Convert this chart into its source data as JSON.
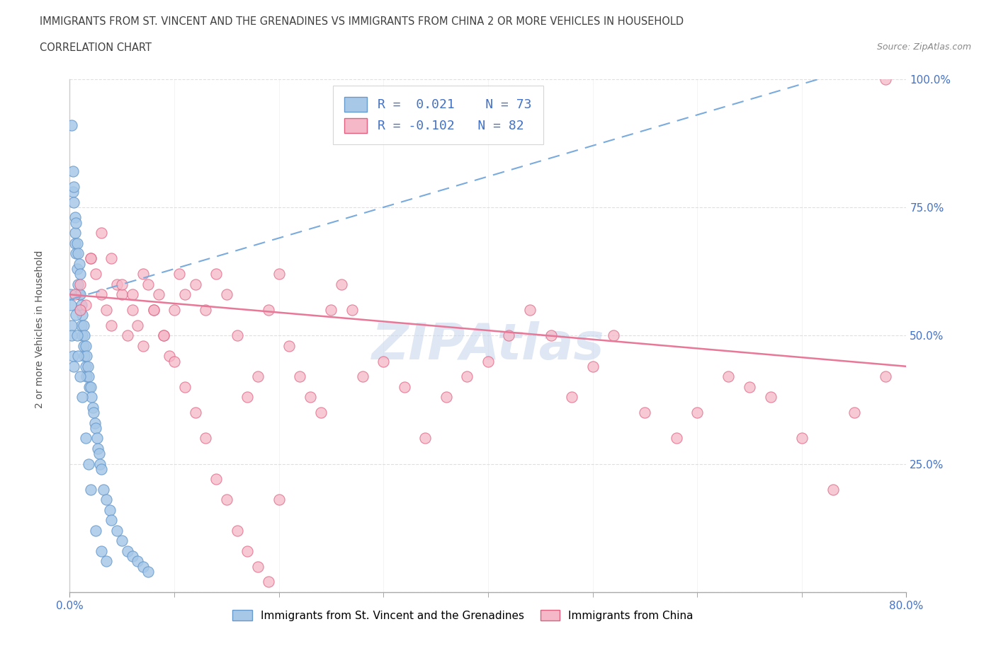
{
  "title": "IMMIGRANTS FROM ST. VINCENT AND THE GRENADINES VS IMMIGRANTS FROM CHINA 2 OR MORE VEHICLES IN HOUSEHOLD",
  "subtitle": "CORRELATION CHART",
  "source": "Source: ZipAtlas.com",
  "ylabel": "2 or more Vehicles in Household",
  "xlim": [
    0.0,
    80.0
  ],
  "ylim": [
    0.0,
    100.0
  ],
  "blue_R": 0.021,
  "blue_N": 73,
  "pink_R": -0.102,
  "pink_N": 82,
  "blue_color": "#a8c8e8",
  "pink_color": "#f5b8c8",
  "blue_edge_color": "#6699cc",
  "pink_edge_color": "#e06080",
  "blue_line_color": "#7aabdd",
  "pink_line_color": "#e87898",
  "legend_blue_label": "Immigrants from St. Vincent and the Grenadines",
  "legend_pink_label": "Immigrants from China",
  "tick_color": "#4472c4",
  "watermark_color": "#c8d8ec",
  "title_color": "#404040",
  "source_color": "#888888",
  "ylabel_color": "#555555",
  "grid_color": "#d8d8d8",
  "blue_x": [
    0.2,
    0.3,
    0.3,
    0.4,
    0.4,
    0.5,
    0.5,
    0.5,
    0.6,
    0.6,
    0.7,
    0.7,
    0.8,
    0.8,
    0.9,
    0.9,
    1.0,
    1.0,
    1.0,
    1.1,
    1.1,
    1.2,
    1.2,
    1.3,
    1.3,
    1.4,
    1.4,
    1.5,
    1.5,
    1.6,
    1.6,
    1.7,
    1.8,
    1.9,
    2.0,
    2.1,
    2.2,
    2.3,
    2.4,
    2.5,
    2.6,
    2.7,
    2.8,
    2.9,
    3.0,
    3.2,
    3.5,
    3.8,
    4.0,
    4.5,
    5.0,
    5.5,
    6.0,
    6.5,
    7.0,
    7.5,
    0.1,
    0.1,
    0.2,
    0.2,
    0.3,
    0.4,
    0.6,
    0.7,
    0.8,
    1.0,
    1.2,
    1.5,
    1.8,
    2.0,
    2.5,
    3.0,
    3.5
  ],
  "blue_y": [
    91,
    82,
    78,
    79,
    76,
    73,
    70,
    68,
    72,
    66,
    68,
    63,
    66,
    60,
    64,
    58,
    62,
    58,
    55,
    56,
    52,
    54,
    50,
    52,
    48,
    50,
    46,
    48,
    44,
    46,
    42,
    44,
    42,
    40,
    40,
    38,
    36,
    35,
    33,
    32,
    30,
    28,
    27,
    25,
    24,
    20,
    18,
    16,
    14,
    12,
    10,
    8,
    7,
    6,
    5,
    4,
    58,
    56,
    52,
    50,
    46,
    44,
    54,
    50,
    46,
    42,
    38,
    30,
    25,
    20,
    12,
    8,
    6
  ],
  "pink_x": [
    0.5,
    1.0,
    1.5,
    2.0,
    2.5,
    3.0,
    3.5,
    4.0,
    4.5,
    5.0,
    5.5,
    6.0,
    6.5,
    7.0,
    7.5,
    8.0,
    8.5,
    9.0,
    9.5,
    10.0,
    10.5,
    11.0,
    12.0,
    13.0,
    14.0,
    15.0,
    16.0,
    17.0,
    18.0,
    19.0,
    20.0,
    21.0,
    22.0,
    23.0,
    24.0,
    25.0,
    26.0,
    27.0,
    28.0,
    30.0,
    32.0,
    34.0,
    36.0,
    38.0,
    40.0,
    42.0,
    44.0,
    46.0,
    48.0,
    50.0,
    52.0,
    55.0,
    58.0,
    60.0,
    63.0,
    65.0,
    67.0,
    70.0,
    73.0,
    75.0,
    78.0,
    1.0,
    2.0,
    3.0,
    4.0,
    5.0,
    6.0,
    7.0,
    8.0,
    9.0,
    10.0,
    11.0,
    12.0,
    13.0,
    14.0,
    15.0,
    16.0,
    17.0,
    18.0,
    19.0,
    20.0,
    78.0
  ],
  "pink_y": [
    58,
    60,
    56,
    65,
    62,
    58,
    55,
    52,
    60,
    58,
    50,
    55,
    52,
    48,
    60,
    55,
    58,
    50,
    46,
    55,
    62,
    58,
    60,
    55,
    62,
    58,
    50,
    38,
    42,
    55,
    62,
    48,
    42,
    38,
    35,
    55,
    60,
    55,
    42,
    45,
    40,
    30,
    38,
    42,
    45,
    50,
    55,
    50,
    38,
    44,
    50,
    35,
    30,
    35,
    42,
    40,
    38,
    30,
    20,
    35,
    42,
    55,
    65,
    70,
    65,
    60,
    58,
    62,
    55,
    50,
    45,
    40,
    35,
    30,
    22,
    18,
    12,
    8,
    5,
    2,
    18,
    100
  ]
}
